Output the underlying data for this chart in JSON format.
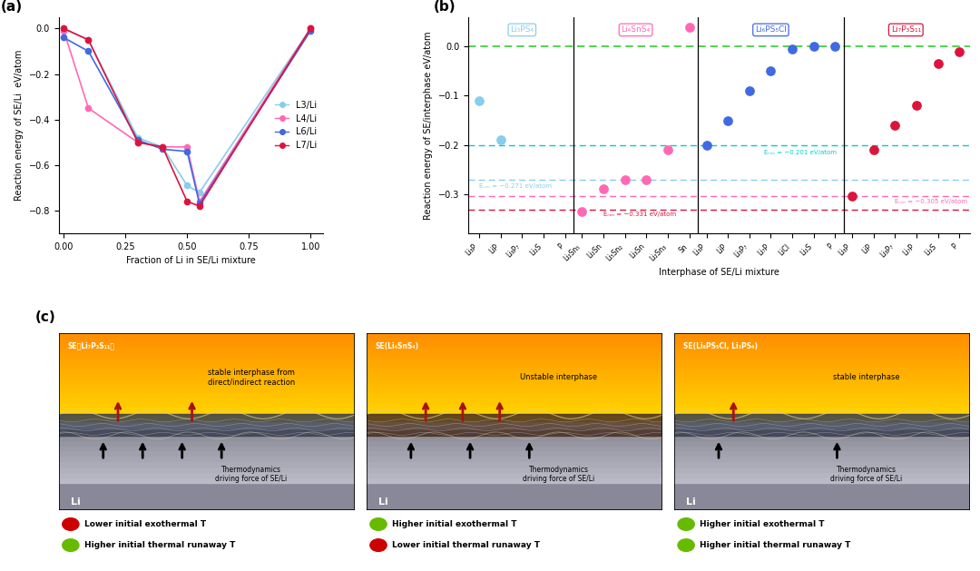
{
  "panel_a": {
    "title": "(a)",
    "xlabel": "Fraction of Li in SE/Li mixture",
    "ylabel": "Reaction energy of SE/Li  eV/atom",
    "series": {
      "L3/Li": {
        "color": "#87CEEB",
        "x": [
          0.0,
          0.1,
          0.3,
          0.4,
          0.5,
          0.55,
          1.0
        ],
        "y": [
          0.0,
          -0.05,
          -0.48,
          -0.52,
          -0.69,
          -0.72,
          0.0
        ]
      },
      "L4/Li": {
        "color": "#FF69B4",
        "x": [
          0.0,
          0.1,
          0.3,
          0.4,
          0.5,
          0.55,
          1.0
        ],
        "y": [
          -0.01,
          -0.35,
          -0.5,
          -0.52,
          -0.52,
          -0.76,
          0.0
        ]
      },
      "L6/Li": {
        "color": "#4169E1",
        "x": [
          0.0,
          0.1,
          0.3,
          0.4,
          0.5,
          0.55,
          1.0
        ],
        "y": [
          -0.04,
          -0.1,
          -0.49,
          -0.53,
          -0.54,
          -0.77,
          -0.01
        ]
      },
      "L7/Li": {
        "color": "#DC143C",
        "x": [
          0.0,
          0.1,
          0.3,
          0.4,
          0.5,
          0.55,
          1.0
        ],
        "y": [
          0.0,
          -0.05,
          -0.5,
          -0.52,
          -0.76,
          -0.78,
          0.0
        ]
      }
    },
    "xlim": [
      -0.02,
      1.05
    ],
    "ylim": [
      -0.9,
      0.05
    ],
    "xticks": [
      0.0,
      0.25,
      0.5,
      0.75,
      1.0
    ],
    "yticks": [
      0.0,
      -0.2,
      -0.4,
      -0.6,
      -0.8
    ]
  },
  "panel_b": {
    "ylabel": "Reaction energy of SE/interphase eV/atom",
    "xlabel": "Interphase of SE/Li mixture",
    "ylim": [
      -0.38,
      0.06
    ],
    "yticks": [
      0.0,
      -0.1,
      -0.2,
      -0.3
    ],
    "hline_green": 0.0,
    "hline_cyan": -0.201,
    "hline_lightcyan": -0.271,
    "hline_pink": -0.305,
    "hline_red": -0.331,
    "subsections": [
      {
        "label": "Li₃PS₄",
        "color": "#87CEEB",
        "x_labels": [
          "Li₃P",
          "LiP",
          "Li₃P₇",
          "Li₂S",
          "P"
        ],
        "y_values": [
          -0.11,
          -0.19,
          null,
          null,
          null
        ]
      },
      {
        "label": "Li₄SnS₄",
        "color": "#FF69B4",
        "x_labels": [
          "Li₂Sn₅",
          "Li₂Sn",
          "Li₅Sn₂",
          "Li₃Sn",
          "Li₂Sn₃",
          "Sn"
        ],
        "y_values": [
          -0.335,
          -0.29,
          -0.27,
          -0.27,
          -0.21,
          0.04
        ]
      },
      {
        "label": "Li₆PS₅Cl",
        "color": "#4169E1",
        "x_labels": [
          "Li₃P",
          "LiP",
          "Li₃P₇",
          "Li₇P",
          "LiCl",
          "Li₂S",
          "P"
        ],
        "y_values": [
          -0.201,
          -0.15,
          -0.09,
          -0.05,
          -0.005,
          0.0,
          0.0
        ]
      },
      {
        "label": "Li₇P₃S₁₁",
        "color": "#DC143C",
        "x_labels": [
          "Li₃P",
          "LiP",
          "Li₃P₇",
          "Li₇P",
          "Li₂S",
          "P"
        ],
        "y_values": [
          -0.305,
          -0.21,
          -0.16,
          -0.12,
          -0.035,
          -0.01
        ]
      }
    ]
  },
  "panel_c": {
    "panels": [
      {
        "title": "SE（Li₇P₃S₁₁）",
        "text": "stable interphase from\ndirect/indirect reaction",
        "bottom_text": "Thermodynamics\ndriving force of SE/Li",
        "arrows_red": 2,
        "arrows_black": 4,
        "unstable": false
      },
      {
        "title": "SE(Li₄SnS₄)",
        "text": "Unstable interphase",
        "bottom_text": "Thermodynamics\ndriving force of SE/Li",
        "arrows_red": 3,
        "arrows_black": 3,
        "unstable": true
      },
      {
        "title": "SE(Li₆PS₅Cl, Li₃PS₄)",
        "text": "stable interphase",
        "bottom_text": "Thermodynamics\ndriving force of SE/Li",
        "arrows_red": 1,
        "arrows_black": 2,
        "unstable": false
      }
    ],
    "legends": [
      [
        [
          "#CC0000",
          "Lower initial exothermal T"
        ],
        [
          "#66BB00",
          "Higher initial thermal runaway T"
        ]
      ],
      [
        [
          "#66BB00",
          "Higher initial exothermal T"
        ],
        [
          "#CC0000",
          "Lower initial thermal runaway T"
        ]
      ],
      [
        [
          "#66BB00",
          "Higher initial exothermal T"
        ],
        [
          "#66BB00",
          "Higher initial thermal runaway T"
        ]
      ]
    ]
  }
}
